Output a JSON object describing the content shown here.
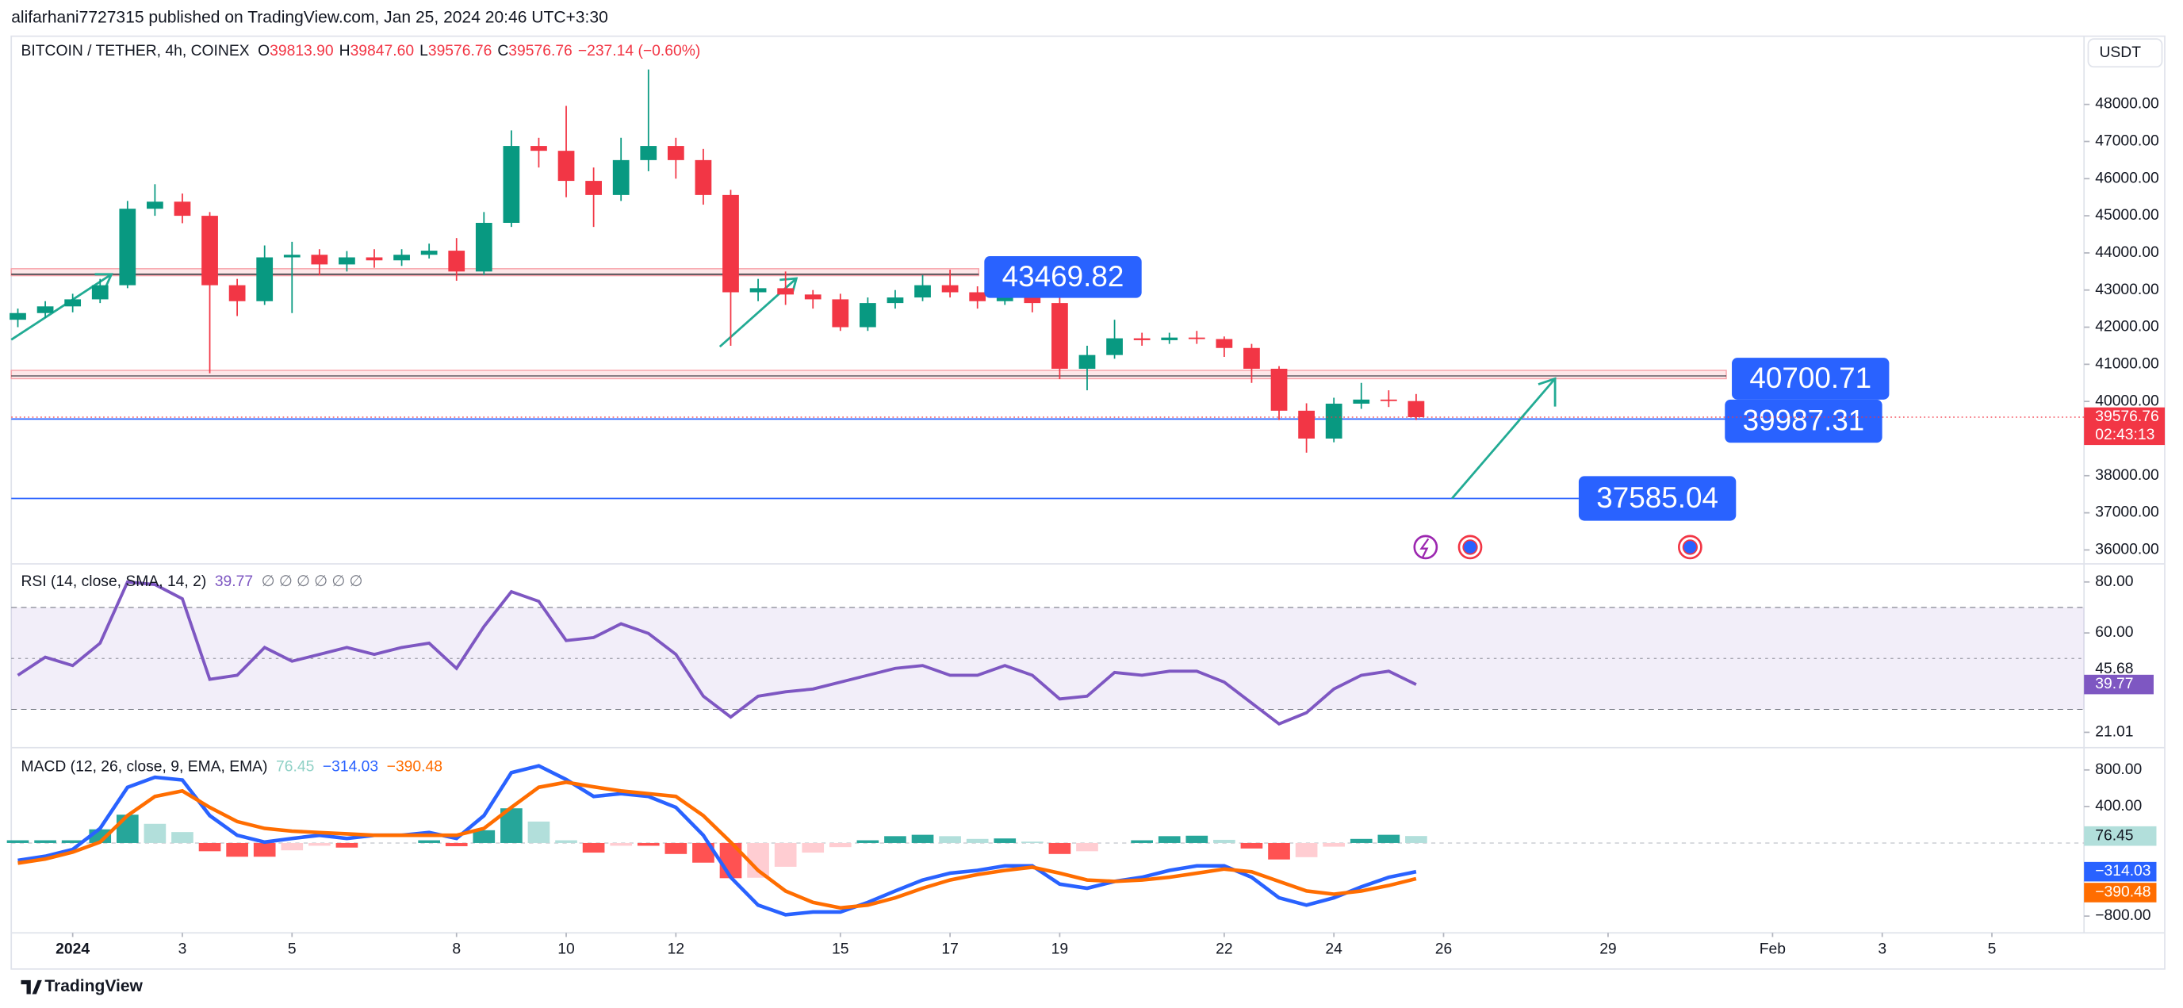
{
  "header": {
    "publisher": "alifarhani7727315 published on TradingView.com, Jan 25, 2024 20:46 UTC+3:30",
    "currency": "USDT"
  },
  "footer": {
    "brand": "TradingView"
  },
  "chart_data": [
    {
      "type": "candlestick",
      "legend": {
        "symbol": "BITCOIN / TETHER, 4h, COINEX",
        "items": [
          {
            "key": "O",
            "value": "39813.90"
          },
          {
            "key": "H",
            "value": "39847.60"
          },
          {
            "key": "L",
            "value": "39576.76"
          },
          {
            "key": "C",
            "value": "39576.76"
          }
        ],
        "change": "−237.14 (−0.60%)"
      },
      "x": [
        -1,
        -0.5,
        0,
        0.5,
        1,
        1.5,
        2,
        2.5,
        3,
        3.5,
        4,
        4.5,
        5,
        5.5,
        6,
        6.5,
        7,
        7.5,
        8,
        8.5,
        9,
        9.5,
        10,
        10.5,
        11,
        11.5,
        12,
        12.5,
        13,
        13.5,
        14,
        14.5,
        15,
        15.5,
        16,
        16.5,
        17,
        17.5,
        18,
        18.5,
        19,
        19.5,
        20,
        20.5,
        21,
        21.5,
        22,
        22.5,
        23,
        23.5,
        24,
        24.5
      ],
      "open": [
        42200,
        42380,
        42560,
        42750,
        43130,
        45190,
        45380,
        45000,
        43130,
        42700,
        43880,
        43950,
        43690,
        43880,
        43800,
        43950,
        44060,
        43500,
        44810,
        46880,
        46750,
        45940,
        45560,
        46500,
        46880,
        46500,
        45560,
        42940,
        43050,
        42880,
        42750,
        42000,
        42650,
        42800,
        43130,
        42940,
        42700,
        42850,
        42650,
        40880,
        41250,
        41700,
        41650,
        41720,
        41680,
        41440,
        40880,
        39750,
        39000,
        39940,
        40050,
        40010
      ],
      "high": [
        42500,
        42700,
        42900,
        43300,
        45400,
        45850,
        45600,
        45100,
        43300,
        44200,
        44300,
        44100,
        44050,
        44100,
        44100,
        44250,
        44400,
        45100,
        47300,
        47100,
        47960,
        46300,
        47100,
        48940,
        47100,
        46800,
        45700,
        43300,
        43500,
        43000,
        42900,
        42800,
        43000,
        43400,
        43550,
        43100,
        43000,
        42950,
        42800,
        41500,
        42200,
        41850,
        41850,
        41900,
        41750,
        41550,
        40950,
        39950,
        40100,
        40500,
        40300,
        40200
      ],
      "low": [
        42000,
        42250,
        42400,
        42650,
        43050,
        45000,
        44800,
        40760,
        42300,
        42600,
        42380,
        43400,
        43500,
        43600,
        43650,
        43850,
        43250,
        43400,
        44700,
        46300,
        45500,
        44700,
        45400,
        46200,
        46000,
        45300,
        41500,
        42700,
        42600,
        42500,
        41900,
        41900,
        42500,
        42700,
        42800,
        42500,
        42600,
        42400,
        40600,
        40300,
        41150,
        41500,
        41550,
        41550,
        41200,
        40500,
        39500,
        38620,
        38900,
        39800,
        39850,
        39500
      ],
      "close": [
        42380,
        42560,
        42750,
        43130,
        45190,
        45380,
        45000,
        43130,
        42700,
        43880,
        43950,
        43690,
        43880,
        43800,
        43950,
        44060,
        43500,
        44810,
        46880,
        46750,
        45940,
        45560,
        46500,
        46880,
        46500,
        45560,
        42940,
        43050,
        42880,
        42750,
        42000,
        42650,
        42800,
        43130,
        42940,
        42700,
        42850,
        42650,
        40880,
        41250,
        41700,
        41650,
        41720,
        41680,
        41440,
        40880,
        39750,
        39000,
        39940,
        40050,
        40010,
        39576.76
      ],
      "up_color": "#089981",
      "down_color": "#f23645",
      "last_price": {
        "label": "39576.76",
        "countdown": "02:43:13"
      },
      "annotations": [
        "43469.82",
        "40700.71",
        "39987.31",
        "37585.04"
      ],
      "xlim": [
        -1.12,
        36.68
      ],
      "ylim": [
        35625,
        49762
      ],
      "yticks": [
        {
          "value": 36000,
          "label": "36000.00"
        },
        {
          "value": 37000,
          "label": "37000.00"
        },
        {
          "value": 38000,
          "label": "38000.00"
        },
        {
          "value": 40000,
          "label": "40000.00"
        },
        {
          "value": 41000,
          "label": "41000.00"
        },
        {
          "value": 42000,
          "label": "42000.00"
        },
        {
          "value": 43000,
          "label": "43000.00"
        },
        {
          "value": 44000,
          "label": "44000.00"
        },
        {
          "value": 45000,
          "label": "45000.00"
        },
        {
          "value": 46000,
          "label": "46000.00"
        },
        {
          "value": 47000,
          "label": "47000.00"
        },
        {
          "value": 48000,
          "label": "48000.00"
        }
      ]
    },
    {
      "type": "line",
      "title": "RSI (14, close, SMA, 14, 2)",
      "placeholders": "∅ ∅ ∅ ∅ ∅ ∅",
      "x": [
        -1,
        -0.5,
        0,
        0.5,
        1,
        1.5,
        2,
        2.5,
        3,
        3.5,
        4,
        4.5,
        5,
        5.5,
        6,
        6.5,
        7,
        7.5,
        8,
        8.5,
        9,
        9.5,
        10,
        10.5,
        11,
        11.5,
        12,
        12.5,
        13,
        13.5,
        14,
        14.5,
        15,
        15.5,
        16,
        16.5,
        17,
        17.5,
        18,
        18.5,
        19,
        19.5,
        20,
        20.5,
        21,
        21.5,
        22,
        22.5,
        23,
        23.5,
        24,
        24.5
      ],
      "series": [
        {
          "color": "#7e57c2",
          "values": [
            43.4,
            50.5,
            47.2,
            56,
            80,
            79,
            73.4,
            41.8,
            43.4,
            54.3,
            48.9,
            51.6,
            54.3,
            51.6,
            54.3,
            56,
            46.1,
            62.5,
            76.2,
            72.4,
            57,
            58.2,
            63.6,
            59.8,
            51.6,
            35.2,
            27,
            35.2,
            36.9,
            38,
            40.7,
            43.4,
            46.1,
            47.2,
            43.4,
            43.4,
            47.2,
            43.4,
            34.1,
            35.2,
            44.5,
            43.4,
            45,
            45,
            40.7,
            32.5,
            24.3,
            28.7,
            38,
            43.4,
            45,
            39.77
          ]
        }
      ],
      "ma_last": 45.68,
      "band": [
        30,
        70
      ],
      "midline": 50,
      "xlim": [
        -1.12,
        36.68
      ],
      "ylim": [
        15,
        87.1
      ],
      "yticks": [
        21.01,
        {
          "value": 60,
          "label": "60.00"
        },
        {
          "value": 80,
          "label": "80.00"
        }
      ]
    },
    {
      "type": "macd",
      "title": "MACD (12, 26, close, 9, EMA, EMA)",
      "legend_values": [
        "76.45",
        "−314.03",
        "−390.48"
      ],
      "x": [
        -1,
        -0.5,
        0,
        0.5,
        1,
        1.5,
        2,
        2.5,
        3,
        3.5,
        4,
        4.5,
        5,
        5.5,
        6,
        6.5,
        7,
        7.5,
        8,
        8.5,
        9,
        9.5,
        10,
        10.5,
        11,
        11.5,
        12,
        12.5,
        13,
        13.5,
        14,
        14.5,
        15,
        15.5,
        16,
        16.5,
        17,
        17.5,
        18,
        18.5,
        19,
        19.5,
        20,
        20.5,
        21,
        21.5,
        22,
        22.5,
        23,
        23.5,
        24,
        24.5
      ],
      "histogram": {
        "colors": [
          "#26a69a",
          "#b2dfdb",
          "#ff5252",
          "#ffcdd2"
        ],
        "values": [
          30,
          30,
          30,
          150,
          310,
          210,
          120,
          -90,
          -150,
          -150,
          -80,
          -30,
          -50,
          0,
          0,
          30,
          -35,
          140,
          380,
          235,
          30,
          -105,
          -30,
          -30,
          -120,
          -215,
          -385,
          -380,
          -260,
          -105,
          -45,
          30,
          75,
          90,
          75,
          45,
          50,
          15,
          -120,
          -90,
          0,
          30,
          75,
          80,
          35,
          -60,
          -180,
          -155,
          -40,
          45,
          90,
          76.45
        ]
      },
      "series": [
        {
          "color": "#2962ff",
          "values": [
            -190,
            -145,
            -70,
            160,
            610,
            720,
            690,
            300,
            85,
            10,
            50,
            85,
            50,
            85,
            85,
            115,
            50,
            300,
            770,
            845,
            695,
            510,
            540,
            510,
            390,
            85,
            -375,
            -680,
            -785,
            -755,
            -755,
            -650,
            -525,
            -405,
            -330,
            -300,
            -250,
            -250,
            -450,
            -495,
            -420,
            -375,
            -300,
            -250,
            -250,
            -375,
            -600,
            -680,
            -600,
            -480,
            -375,
            -314.03
          ]
        },
        {
          "color": "#ff6d00",
          "values": [
            -220,
            -175,
            -100,
            10,
            300,
            510,
            570,
            390,
            235,
            160,
            130,
            115,
            100,
            85,
            85,
            85,
            85,
            160,
            390,
            610,
            665,
            615,
            570,
            540,
            510,
            300,
            10,
            -300,
            -525,
            -650,
            -710,
            -680,
            -600,
            -495,
            -405,
            -345,
            -300,
            -265,
            -330,
            -405,
            -420,
            -405,
            -375,
            -330,
            -285,
            -315,
            -420,
            -525,
            -560,
            -525,
            -465,
            -390.48
          ]
        }
      ],
      "xlim": [
        -1.12,
        36.68
      ],
      "ylim": [
        -983,
        1044
      ],
      "yticks": [
        {
          "value": -800,
          "label": "−800.00"
        },
        {
          "value": 400,
          "label": "400.00"
        },
        {
          "value": 800,
          "label": "800.00"
        }
      ],
      "xticks": [
        {
          "value": 0,
          "label": "2024"
        },
        {
          "value": 2,
          "label": "3"
        },
        {
          "value": 4,
          "label": "5"
        },
        {
          "value": 7,
          "label": "8"
        },
        {
          "value": 9,
          "label": "10"
        },
        {
          "value": 11,
          "label": "12"
        },
        {
          "value": 14,
          "label": "15"
        },
        {
          "value": 16,
          "label": "17"
        },
        {
          "value": 18,
          "label": "19"
        },
        {
          "value": 21,
          "label": "22"
        },
        {
          "value": 23,
          "label": "24"
        },
        {
          "value": 25,
          "label": "26"
        },
        {
          "value": 28,
          "label": "29"
        },
        {
          "value": 31,
          "label": "Feb"
        },
        {
          "value": 33,
          "label": "3"
        },
        {
          "value": 35,
          "label": "5"
        }
      ]
    }
  ]
}
